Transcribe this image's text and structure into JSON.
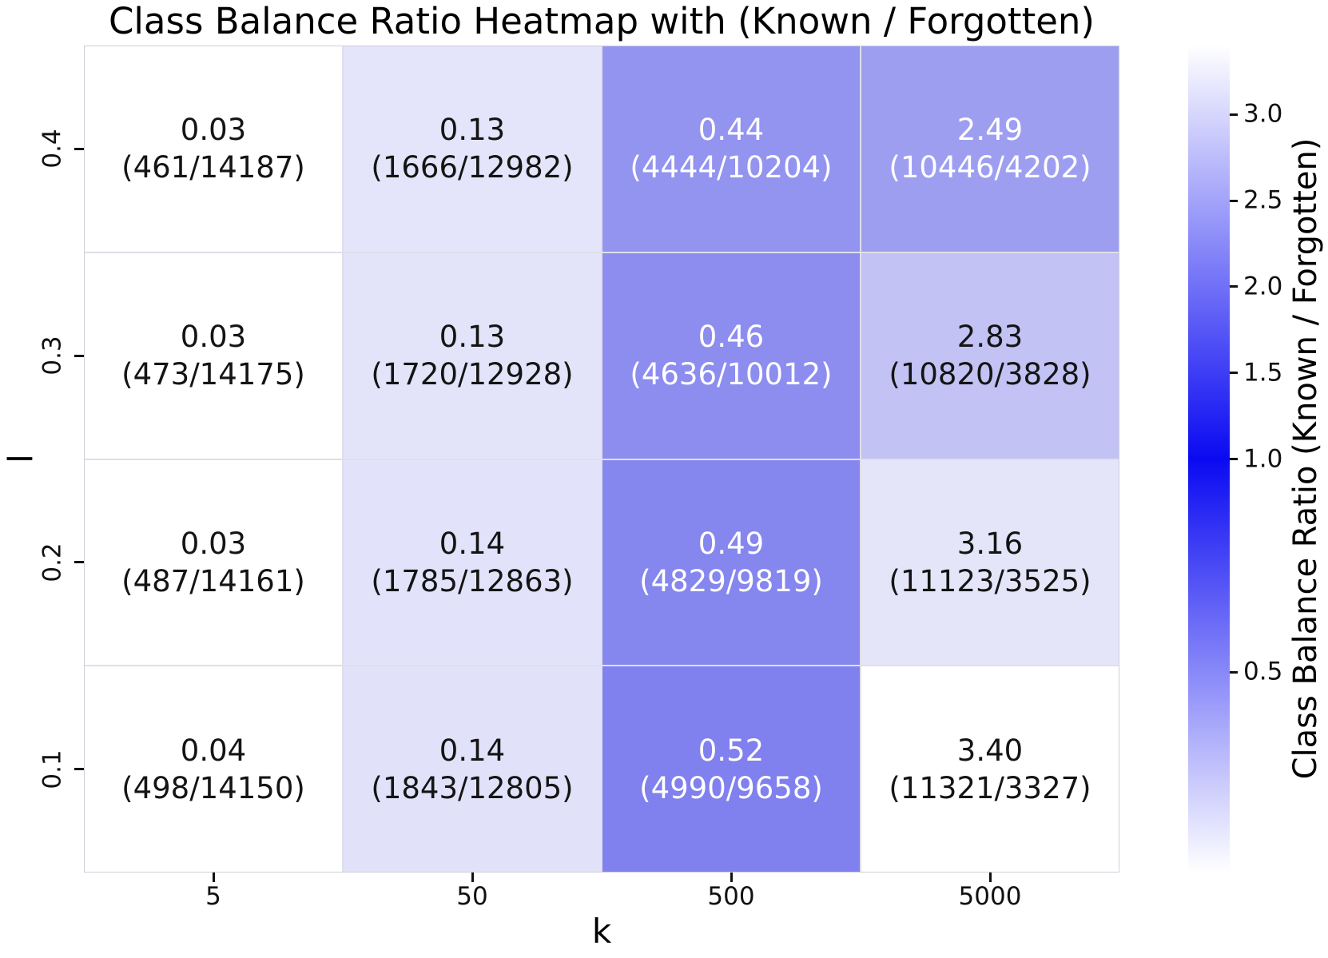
{
  "title": "Class Balance Ratio Heatmap with (Known / Forgotten)",
  "colors": {
    "background": "#ffffff",
    "annot_dark": "#141414",
    "annot_light": "#ffffff",
    "tick": "#111111",
    "grid_line": "#dfdfe8",
    "colorbar_blue": "#0a0af2",
    "colorbar_white": "#ffffff"
  },
  "chart_data": {
    "type": "heatmap",
    "title": "Class Balance Ratio Heatmap with (Known / Forgotten)",
    "xlabel": "k",
    "ylabel": "l",
    "x_categories": [
      "5",
      "50",
      "500",
      "5000"
    ],
    "y_categories": [
      "0.4",
      "0.3",
      "0.2",
      "0.1"
    ],
    "colorbar": {
      "label": "Class Balance Ratio (Known / Forgotten)",
      "tick_labels": [
        "3.0",
        "2.5",
        "2.0",
        "1.5",
        "1.0",
        "0.5"
      ],
      "norm": {
        "vmin": 0.03,
        "vcenter": 1.0,
        "vmax": 3.4
      }
    },
    "cells": [
      [
        {
          "value": "0.03",
          "known": 461,
          "forgotten": 14187,
          "bg": "#ffffff",
          "text": "dark"
        },
        {
          "value": "0.13",
          "known": 1666,
          "forgotten": 12982,
          "bg": "#e4e4fa",
          "text": "dark"
        },
        {
          "value": "0.44",
          "known": 4444,
          "forgotten": 10204,
          "bg": "#9393f0",
          "text": "white"
        },
        {
          "value": "2.49",
          "known": 10446,
          "forgotten": 4202,
          "bg": "#9e9ef1",
          "text": "white"
        }
      ],
      [
        {
          "value": "0.03",
          "known": 473,
          "forgotten": 14175,
          "bg": "#ffffff",
          "text": "dark"
        },
        {
          "value": "0.13",
          "known": 1720,
          "forgotten": 12928,
          "bg": "#e3e3fa",
          "text": "dark"
        },
        {
          "value": "0.46",
          "known": 4636,
          "forgotten": 10012,
          "bg": "#8d8df0",
          "text": "white"
        },
        {
          "value": "2.83",
          "known": 10820,
          "forgotten": 3828,
          "bg": "#c2c2f5",
          "text": "dark"
        }
      ],
      [
        {
          "value": "0.03",
          "known": 487,
          "forgotten": 14161,
          "bg": "#ffffff",
          "text": "dark"
        },
        {
          "value": "0.14",
          "known": 1785,
          "forgotten": 12863,
          "bg": "#e2e2fa",
          "text": "dark"
        },
        {
          "value": "0.49",
          "known": 4829,
          "forgotten": 9819,
          "bg": "#8686ef",
          "text": "white"
        },
        {
          "value": "3.16",
          "known": 11123,
          "forgotten": 3525,
          "bg": "#e5e5fa",
          "text": "dark"
        }
      ],
      [
        {
          "value": "0.04",
          "known": 498,
          "forgotten": 14150,
          "bg": "#ffffff",
          "text": "dark"
        },
        {
          "value": "0.14",
          "known": 1843,
          "forgotten": 12805,
          "bg": "#e1e1fa",
          "text": "dark"
        },
        {
          "value": "0.52",
          "known": 4990,
          "forgotten": 9658,
          "bg": "#8080ee",
          "text": "white"
        },
        {
          "value": "3.40",
          "known": 11321,
          "forgotten": 3327,
          "bg": "#ffffff",
          "text": "dark"
        }
      ]
    ]
  }
}
